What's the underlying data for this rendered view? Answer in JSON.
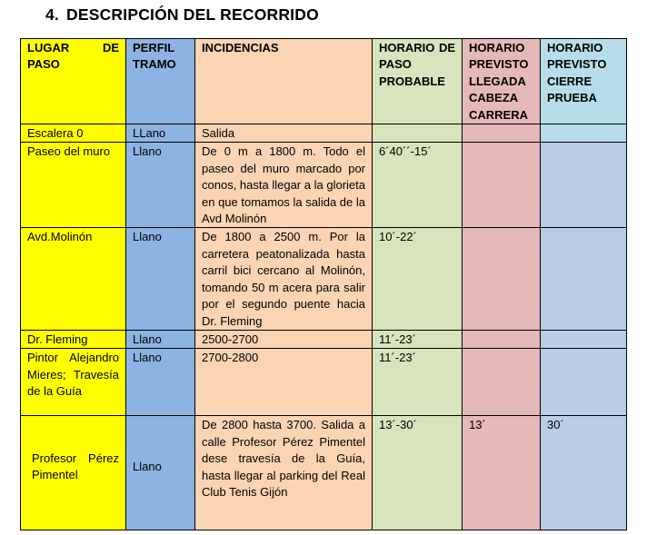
{
  "section": {
    "number": "4.",
    "title": "DESCRIPCIÓN DEL RECORRIDO"
  },
  "table": {
    "headers": [
      "LUGAR DE PASO",
      "PERFIL TRAMO",
      "INCIDENCIAS",
      "HORARIO DE PASO PROBABLE",
      "HORARIO PREVISTO LLEGADA CABEZA CARRERA",
      "HORARIO PREVISTO CIERRE PRUEBA"
    ],
    "rows": [
      [
        "Escalera 0",
        "LLano",
        "Salida",
        "",
        "",
        ""
      ],
      [
        "Paseo del muro",
        "Llano",
        "De 0 m a 1800 m. Todo el paseo del muro marcado por conos, hasta llegar a la glorieta en que tomamos la salida de la Avd Molinón",
        "6´40´´-15´",
        "",
        ""
      ],
      [
        "Avd.Molinón",
        "Llano",
        "De 1800 a 2500 m. Por la carretera peatonalizada hasta carril bici cercano al Molinón, tomando 50 m acera para salir por el segundo puente hacia Dr. Fleming",
        "10´-22´",
        "",
        ""
      ],
      [
        "Dr. Fleming",
        "Llano",
        "2500-2700",
        "11´-23´",
        "",
        ""
      ],
      [
        "Pintor Alejandro Mieres; Travesía de la Guía",
        "Llano",
        "2700-2800",
        "11´-23´",
        "",
        ""
      ],
      [
        "Profesor Pérez Pimentel",
        "Llano",
        "De 2800 hasta 3700. Salida a calle Profesor Pérez Pimentel dese travesía de la Guía, hasta llegar al parking del Real Club Tenis Gijón",
        "13´-30´",
        "13´",
        "30´"
      ]
    ]
  },
  "colors": {
    "lugar": "#ffff00",
    "perfil": "#8db3e2",
    "incidencias": "#fbd4b4",
    "paso": "#d7e4bd",
    "llegada": "#e5b9b7",
    "cierre": "#b9cde5",
    "cierre_header": "#b7dee8"
  }
}
